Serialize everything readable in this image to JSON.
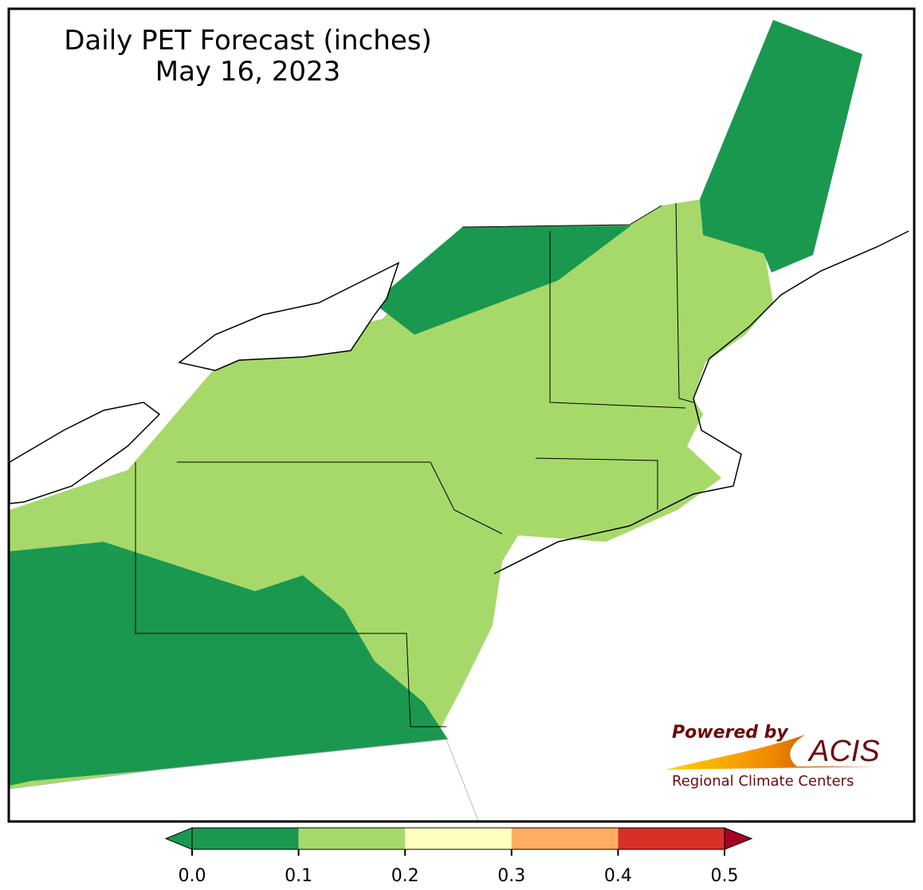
{
  "title": "Daily PET Forecast (inches)",
  "subtitle": "May 16, 2023",
  "colorbar": {
    "ticks": [
      {
        "value": 0,
        "label": "0.0"
      },
      0.1,
      0.2,
      0.3,
      0.4,
      0.5
    ],
    "colors": [
      "#1a9850",
      "#a6d96a",
      "#ffffbf",
      "#fdae61",
      "#d73027"
    ],
    "extend_low_color": "#1a9850",
    "extend_high_color": "#a50026"
  },
  "logo": {
    "powered_by": "Powered by",
    "name": "ACIS",
    "tagline": "Regional Climate Centers"
  }
}
